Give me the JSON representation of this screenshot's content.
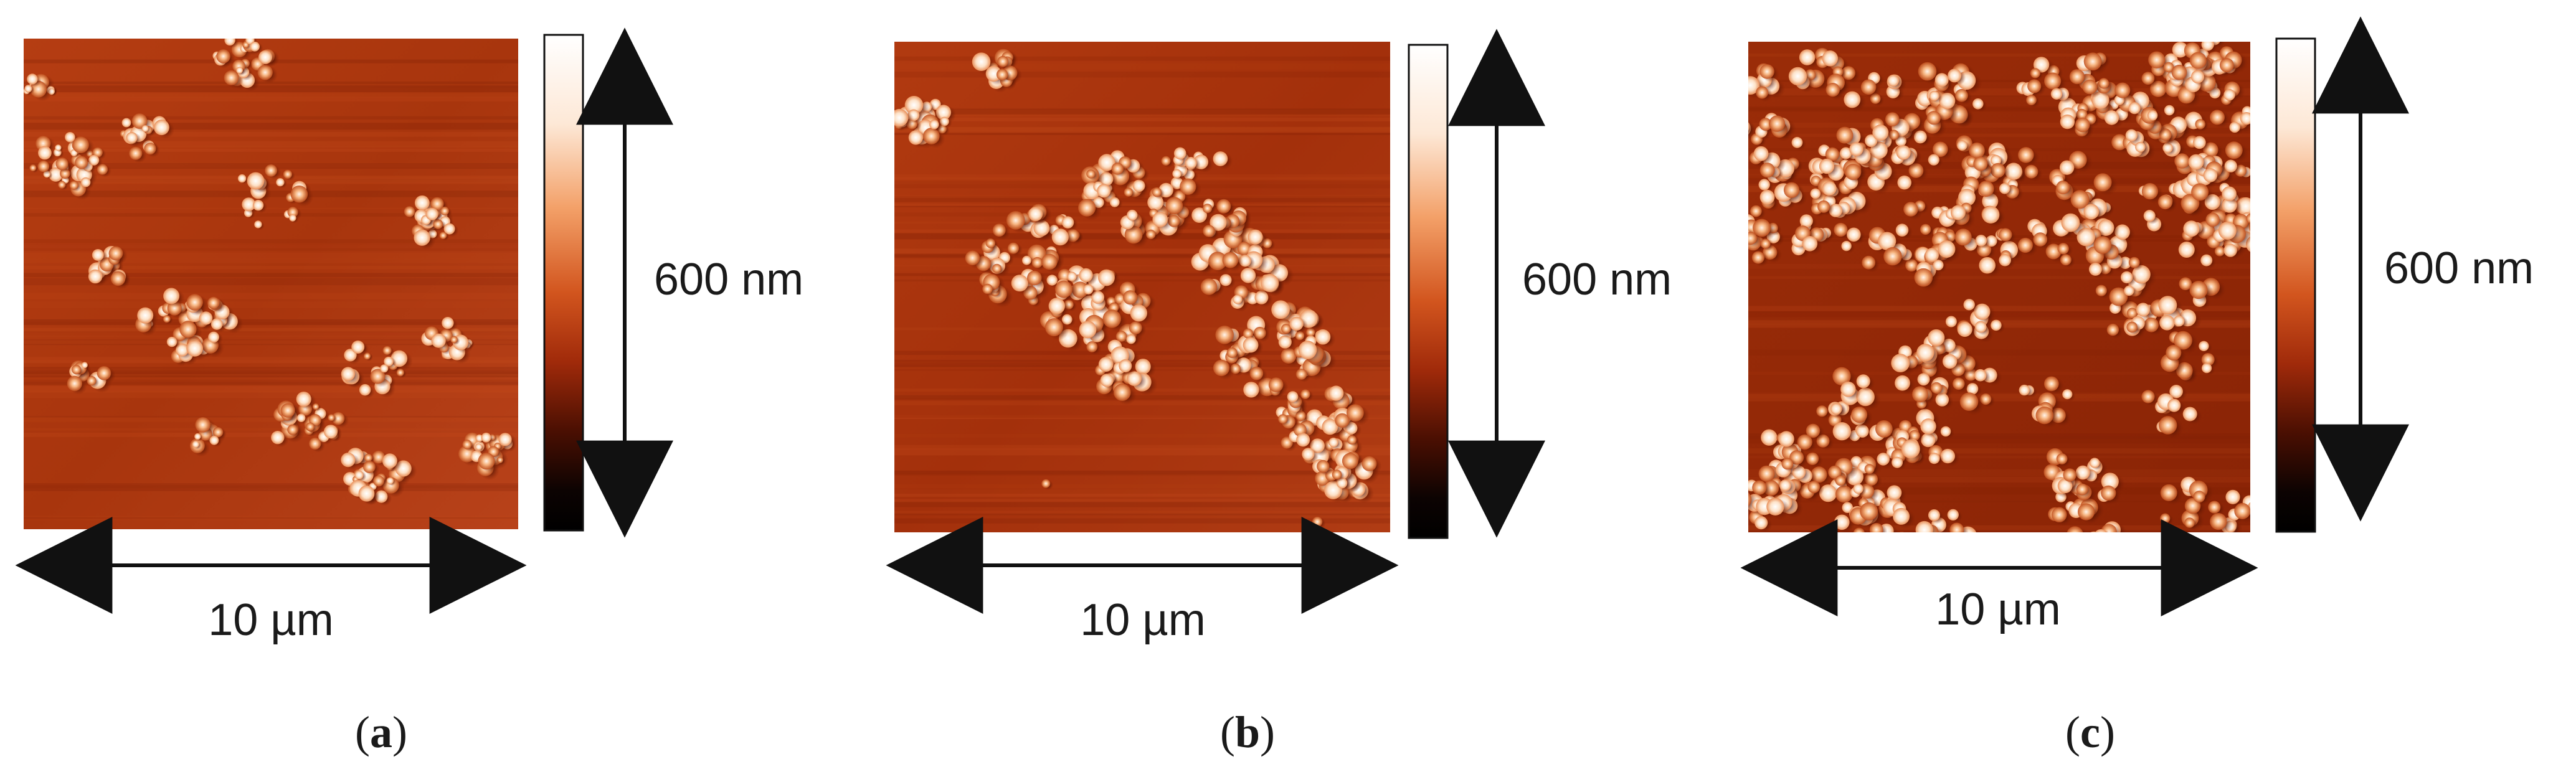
{
  "colors": {
    "background": "#ffffff",
    "substrate": "#b23a10",
    "substrate_dark": "#7a1e05",
    "particle": "#f0a070",
    "particle_light": "#fff0e0",
    "arrow": "#111111"
  },
  "icons": [
    "afm-height-map",
    "colorbar",
    "double-arrow"
  ],
  "panels": [
    {
      "id": "a",
      "label_open": "(",
      "letter": "a",
      "label_close": ")",
      "height_range": "600 nm",
      "scan_size": "10 µm"
    },
    {
      "id": "b",
      "label_open": "(",
      "letter": "b",
      "label_close": ")",
      "height_range": "600 nm",
      "scan_size": "10 µm"
    },
    {
      "id": "c",
      "label_open": "(",
      "letter": "c",
      "label_close": ")",
      "height_range": "600 nm",
      "scan_size": "10 µm"
    }
  ]
}
